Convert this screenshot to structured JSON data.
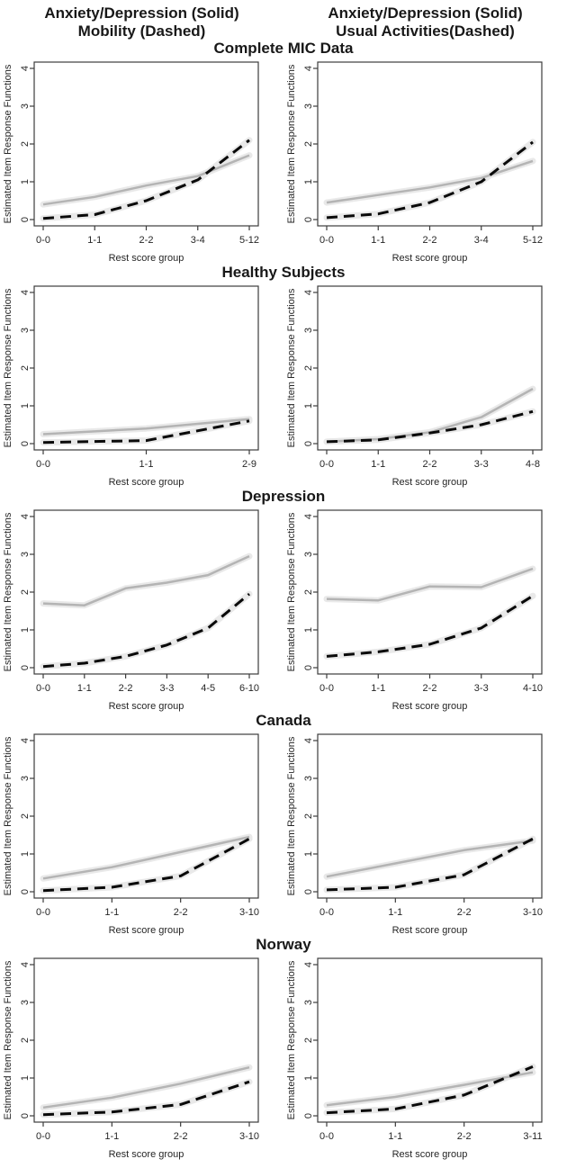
{
  "headers": [
    {
      "line1": "Anxiety/Depression (Solid)",
      "line2": "Mobility (Dashed)"
    },
    {
      "line1": "Anxiety/Depression (Solid)",
      "line2": "Usual Activities(Dashed)"
    }
  ],
  "sections": [
    {
      "title": "Complete MIC Data"
    },
    {
      "title": "Healthy Subjects"
    },
    {
      "title": "Depression"
    },
    {
      "title": "Canada"
    },
    {
      "title": "Norway"
    }
  ],
  "colors": {
    "solid_line": "#b4b4b4",
    "dashed_line": "#0a0a0a",
    "confidence_band": "#e9e9e9",
    "axis": "#3c3c3c",
    "text": "#262626"
  },
  "chart_data": [
    {
      "type": "line",
      "section": "Complete MIC Data",
      "panel": "Mobility",
      "categories": [
        "0-0",
        "1-1",
        "2-2",
        "3-4",
        "5-12"
      ],
      "series": [
        {
          "name": "Anxiety/Depression",
          "style": "solid",
          "values": [
            0.4,
            0.6,
            0.9,
            1.15,
            1.7
          ]
        },
        {
          "name": "Mobility",
          "style": "dashed",
          "values": [
            0.03,
            0.13,
            0.5,
            1.05,
            2.1
          ]
        }
      ],
      "xlabel": "Rest score group",
      "ylabel": "Estimated Item Response Functions",
      "ylim": [
        0,
        4
      ],
      "yticks": [
        0,
        1,
        2,
        3,
        4
      ],
      "grid": false,
      "legend": "none"
    },
    {
      "type": "line",
      "section": "Complete MIC Data",
      "panel": "Usual Activities",
      "categories": [
        "0-0",
        "1-1",
        "2-2",
        "3-4",
        "5-12"
      ],
      "series": [
        {
          "name": "Anxiety/Depression",
          "style": "solid",
          "values": [
            0.45,
            0.65,
            0.85,
            1.1,
            1.55
          ]
        },
        {
          "name": "Usual Activities",
          "style": "dashed",
          "values": [
            0.05,
            0.15,
            0.45,
            1.0,
            2.05
          ]
        }
      ],
      "xlabel": "Rest score group",
      "ylabel": "Estimated Item Response Functions",
      "ylim": [
        0,
        4
      ],
      "yticks": [
        0,
        1,
        2,
        3,
        4
      ],
      "grid": false,
      "legend": "none"
    },
    {
      "type": "line",
      "section": "Healthy Subjects",
      "panel": "Mobility",
      "categories": [
        "0-0",
        "1-1",
        "2-9"
      ],
      "series": [
        {
          "name": "Anxiety/Depression",
          "style": "solid",
          "values": [
            0.25,
            0.4,
            0.65
          ]
        },
        {
          "name": "Mobility",
          "style": "dashed",
          "values": [
            0.03,
            0.08,
            0.6
          ]
        }
      ],
      "xlabel": "Rest score group",
      "ylabel": "Estimated Item Response Functions",
      "ylim": [
        0,
        4
      ],
      "yticks": [
        0,
        1,
        2,
        3,
        4
      ],
      "grid": false,
      "legend": "none"
    },
    {
      "type": "line",
      "section": "Healthy Subjects",
      "panel": "Usual Activities",
      "categories": [
        "0-0",
        "1-1",
        "2-2",
        "3-3",
        "4-8"
      ],
      "series": [
        {
          "name": "Anxiety/Depression",
          "style": "solid",
          "values": [
            0.05,
            0.12,
            0.3,
            0.7,
            1.45
          ]
        },
        {
          "name": "Usual Activities",
          "style": "dashed",
          "values": [
            0.05,
            0.1,
            0.28,
            0.5,
            0.85
          ]
        }
      ],
      "xlabel": "Rest score group",
      "ylabel": "Estimated Item Response Functions",
      "ylim": [
        0,
        4
      ],
      "yticks": [
        0,
        1,
        2,
        3,
        4
      ],
      "grid": false,
      "legend": "none"
    },
    {
      "type": "line",
      "section": "Depression",
      "panel": "Mobility",
      "categories": [
        "0-0",
        "1-1",
        "2-2",
        "3-3",
        "4-5",
        "6-10"
      ],
      "series": [
        {
          "name": "Anxiety/Depression",
          "style": "solid",
          "values": [
            1.7,
            1.65,
            2.1,
            2.25,
            2.45,
            2.95
          ]
        },
        {
          "name": "Mobility",
          "style": "dashed",
          "values": [
            0.03,
            0.12,
            0.3,
            0.6,
            1.05,
            1.95
          ]
        }
      ],
      "xlabel": "Rest score group",
      "ylabel": "Estimated Item Response Functions",
      "ylim": [
        0,
        4
      ],
      "yticks": [
        0,
        1,
        2,
        3,
        4
      ],
      "grid": false,
      "legend": "none"
    },
    {
      "type": "line",
      "section": "Depression",
      "panel": "Usual Activities",
      "categories": [
        "0-0",
        "1-1",
        "2-2",
        "3-3",
        "4-10"
      ],
      "series": [
        {
          "name": "Anxiety/Depression",
          "style": "solid",
          "values": [
            1.82,
            1.78,
            2.15,
            2.13,
            2.62
          ]
        },
        {
          "name": "Usual Activities",
          "style": "dashed",
          "values": [
            0.3,
            0.42,
            0.62,
            1.05,
            1.9
          ]
        }
      ],
      "xlabel": "Rest score group",
      "ylabel": "Estimated Item Response Functions",
      "ylim": [
        0,
        4
      ],
      "yticks": [
        0,
        1,
        2,
        3,
        4
      ],
      "grid": false,
      "legend": "none"
    },
    {
      "type": "line",
      "section": "Canada",
      "panel": "Mobility",
      "categories": [
        "0-0",
        "1-1",
        "2-2",
        "3-10"
      ],
      "series": [
        {
          "name": "Anxiety/Depression",
          "style": "solid",
          "values": [
            0.35,
            0.65,
            1.05,
            1.45
          ]
        },
        {
          "name": "Mobility",
          "style": "dashed",
          "values": [
            0.03,
            0.12,
            0.42,
            1.4
          ]
        }
      ],
      "xlabel": "Rest score group",
      "ylabel": "Estimated Item Response Functions",
      "ylim": [
        0,
        4
      ],
      "yticks": [
        0,
        1,
        2,
        3,
        4
      ],
      "grid": false,
      "legend": "none"
    },
    {
      "type": "line",
      "section": "Canada",
      "panel": "Usual Activities",
      "categories": [
        "0-0",
        "1-1",
        "2-2",
        "3-10"
      ],
      "series": [
        {
          "name": "Anxiety/Depression",
          "style": "solid",
          "values": [
            0.4,
            0.75,
            1.1,
            1.35
          ]
        },
        {
          "name": "Usual Activities",
          "style": "dashed",
          "values": [
            0.05,
            0.12,
            0.45,
            1.4
          ]
        }
      ],
      "xlabel": "Rest score group",
      "ylabel": "Estimated Item Response Functions",
      "ylim": [
        0,
        4
      ],
      "yticks": [
        0,
        1,
        2,
        3,
        4
      ],
      "grid": false,
      "legend": "none"
    },
    {
      "type": "line",
      "section": "Norway",
      "panel": "Mobility",
      "categories": [
        "0-0",
        "1-1",
        "2-2",
        "3-10"
      ],
      "series": [
        {
          "name": "Anxiety/Depression",
          "style": "solid",
          "values": [
            0.22,
            0.48,
            0.85,
            1.28
          ]
        },
        {
          "name": "Mobility",
          "style": "dashed",
          "values": [
            0.03,
            0.1,
            0.3,
            0.9
          ]
        }
      ],
      "xlabel": "Rest score group",
      "ylabel": "Estimated Item Response Functions",
      "ylim": [
        0,
        4
      ],
      "yticks": [
        0,
        1,
        2,
        3,
        4
      ],
      "grid": false,
      "legend": "none"
    },
    {
      "type": "line",
      "section": "Norway",
      "panel": "Usual Activities",
      "categories": [
        "0-0",
        "1-1",
        "2-2",
        "3-11"
      ],
      "series": [
        {
          "name": "Anxiety/Depression",
          "style": "solid",
          "values": [
            0.28,
            0.5,
            0.82,
            1.15
          ]
        },
        {
          "name": "Usual Activities",
          "style": "dashed",
          "values": [
            0.08,
            0.18,
            0.55,
            1.3
          ]
        }
      ],
      "xlabel": "Rest score group",
      "ylabel": "Estimated Item Response Functions",
      "ylim": [
        0,
        4
      ],
      "yticks": [
        0,
        1,
        2,
        3,
        4
      ],
      "grid": false,
      "legend": "none"
    }
  ]
}
